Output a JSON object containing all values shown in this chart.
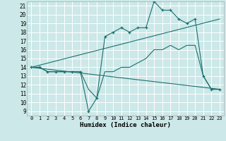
{
  "xlabel": "Humidex (Indice chaleur)",
  "bg_color": "#cce8e8",
  "line_color": "#1a7070",
  "grid_color": "#ffffff",
  "xlim": [
    -0.5,
    23.5
  ],
  "ylim": [
    8.5,
    21.5
  ],
  "xticks": [
    0,
    1,
    2,
    3,
    4,
    5,
    6,
    7,
    8,
    9,
    10,
    11,
    12,
    13,
    14,
    15,
    16,
    17,
    18,
    19,
    20,
    21,
    22,
    23
  ],
  "yticks": [
    9,
    10,
    11,
    12,
    13,
    14,
    15,
    16,
    17,
    18,
    19,
    20,
    21
  ],
  "line1_x": [
    0,
    1,
    2,
    3,
    4,
    5,
    6,
    7,
    8,
    9,
    10,
    11,
    12,
    13,
    14,
    15,
    16,
    17,
    18,
    19,
    20,
    21,
    22,
    23
  ],
  "line1_y": [
    14,
    14,
    13.5,
    13.5,
    13.5,
    13.5,
    13.5,
    9,
    10.5,
    17.5,
    18,
    18.5,
    18,
    18.5,
    18.5,
    21.5,
    20.5,
    20.5,
    19.5,
    19,
    19.5,
    13,
    11.5,
    11.5
  ],
  "line2_x": [
    0,
    1,
    2,
    3,
    4,
    5,
    6,
    7,
    8,
    9,
    10,
    11,
    12,
    13,
    14,
    15,
    16,
    17,
    18,
    19,
    20,
    21,
    22,
    23
  ],
  "line2_y": [
    14,
    14,
    13.5,
    13.5,
    13.5,
    13.5,
    13.5,
    11.5,
    10.5,
    13.5,
    13.5,
    14,
    14,
    14.5,
    15,
    16,
    16,
    16.5,
    16,
    16.5,
    16.5,
    13,
    11.5,
    11.5
  ],
  "line3_x": [
    0,
    23
  ],
  "line3_y": [
    14,
    19.5
  ],
  "line4_x": [
    0,
    23
  ],
  "line4_y": [
    14,
    11.5
  ]
}
